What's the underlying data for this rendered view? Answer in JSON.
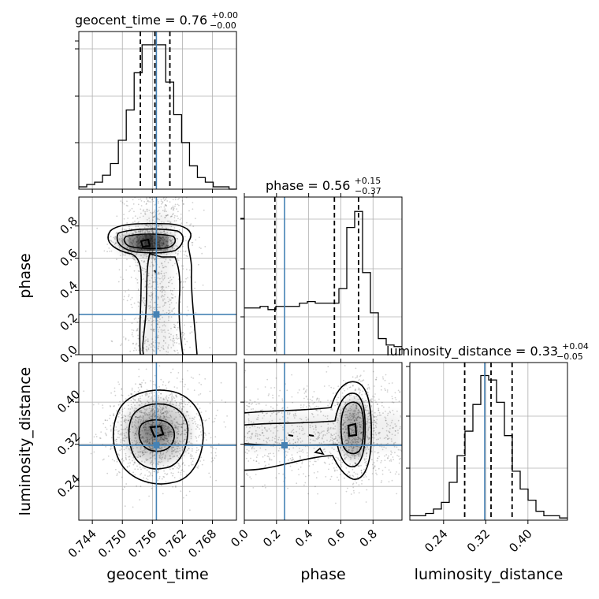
{
  "chart_data": {
    "type": "corner",
    "parameters": [
      "geocent_time",
      "phase",
      "luminosity_distance"
    ],
    "axis_labels": {
      "x": [
        "geocent_time",
        "phase",
        "luminosity_distance"
      ],
      "y": [
        "phase",
        "luminosity_distance"
      ]
    },
    "titles": [
      {
        "name": "geocent_time",
        "value": "0.76",
        "plus": "+0.00",
        "minus": "−0.00"
      },
      {
        "name": "phase",
        "value": "0.56",
        "plus": "+0.15",
        "minus": "−0.37"
      },
      {
        "name": "luminosity_distance",
        "value": "0.33",
        "plus": "+0.04",
        "minus": "−0.05"
      }
    ],
    "ranges": {
      "geocent_time": [
        0.7413,
        0.7728
      ],
      "phase": [
        0.0,
        0.98
      ],
      "luminosity_distance": [
        0.176,
        0.475
      ]
    },
    "ticks": {
      "geocent_time": [
        "0.744",
        "0.750",
        "0.756",
        "0.762",
        "0.768"
      ],
      "phase_x": [
        "0.0",
        "0.2",
        "0.4",
        "0.6",
        "0.8"
      ],
      "phase_y": [
        "0.0",
        "0.2",
        "0.4",
        "0.6",
        "0.8"
      ],
      "luminosity_distance_x": [
        "0.24",
        "0.32",
        "0.40"
      ],
      "luminosity_distance_y": [
        "0.24",
        "0.32",
        "0.40"
      ]
    },
    "truths": {
      "geocent_time": 0.7568,
      "phase": 0.25,
      "luminosity_distance": 0.318
    },
    "quantiles": {
      "geocent_time": [
        0.7536,
        0.7565,
        0.7595
      ],
      "phase": [
        0.19,
        0.56,
        0.71
      ],
      "luminosity_distance": [
        0.28,
        0.33,
        0.37
      ]
    },
    "histograms": {
      "geocent_time": {
        "edges_start": 0.7413,
        "bin_width": 0.00158,
        "counts": [
          1,
          2,
          3,
          6,
          11,
          21,
          34,
          50,
          62,
          62,
          62,
          46,
          32,
          20,
          10,
          5,
          3,
          1,
          1,
          0
        ]
      },
      "phase": {
        "edges_start": 0.0,
        "bin_width": 0.049,
        "counts": [
          0.29,
          0.29,
          0.3,
          0.28,
          0.3,
          0.3,
          0.3,
          0.32,
          0.33,
          0.32,
          0.32,
          0.32,
          0.31,
          0.32,
          0.31,
          0.3,
          0.27,
          0.26,
          0.26,
          0.26
        ]
      },
      "luminosity_distance": {
        "edges_start": 0.176,
        "bin_width": 0.01495,
        "counts": [
          2,
          2,
          3,
          5,
          8,
          17,
          29,
          40,
          52,
          65,
          63,
          53,
          38,
          22,
          14,
          9,
          4,
          2,
          2,
          1
        ]
      }
    },
    "phase_histogram_corrections": [
      {
        "bin": 12,
        "count": 0.41
      },
      {
        "bin": 13,
        "count": 0.79
      },
      {
        "bin": 14,
        "count": 0.89
      },
      {
        "bin": 15,
        "count": 0.51
      },
      {
        "bin": 16,
        "count": 0.26
      },
      {
        "bin": 17,
        "count": 0.1
      },
      {
        "bin": 18,
        "count": 0.06
      },
      {
        "bin": 19,
        "count": 0.05
      }
    ],
    "contour_color": "#000000",
    "truth_color": "#4682b4",
    "grid": true
  }
}
